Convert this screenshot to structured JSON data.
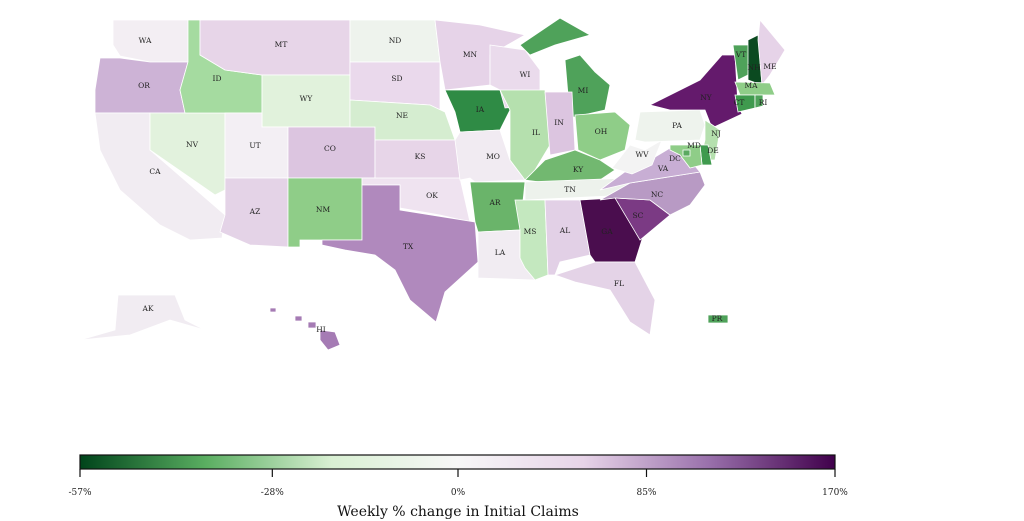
{
  "legend": {
    "title": "Weekly % change in Initial Claims",
    "ticks": [
      "-57%",
      "-28%",
      "0%",
      "85%",
      "170%"
    ],
    "tick_values": [
      -57,
      -28,
      0,
      85,
      170
    ],
    "colors": [
      "#00441b",
      "#5aae61",
      "#d9f0d3",
      "#f7f7f7",
      "#e7d4e8",
      "#9970ab",
      "#40004b"
    ]
  },
  "states": [
    {
      "code": "WA",
      "label": "WA",
      "value": 3,
      "color": "#f3eef3"
    },
    {
      "code": "OR",
      "label": "OR",
      "value": 60,
      "color": "#cdb3d6"
    },
    {
      "code": "CA",
      "label": "CA",
      "value": 5,
      "color": "#f1ecf2"
    },
    {
      "code": "NV",
      "label": "NV",
      "value": -8,
      "color": "#e2f2dd"
    },
    {
      "code": "ID",
      "label": "ID",
      "value": -22,
      "color": "#a5dba0"
    },
    {
      "code": "MT",
      "label": "MT",
      "value": 25,
      "color": "#e7d5e8"
    },
    {
      "code": "WY",
      "label": "WY",
      "value": -8,
      "color": "#e1f2dc"
    },
    {
      "code": "UT",
      "label": "UT",
      "value": 3,
      "color": "#f3eff4"
    },
    {
      "code": "CO",
      "label": "CO",
      "value": 45,
      "color": "#dcc5e0"
    },
    {
      "code": "AZ",
      "label": "AZ",
      "value": 30,
      "color": "#e4d3e7"
    },
    {
      "code": "NM",
      "label": "NM",
      "value": -25,
      "color": "#8fcd88"
    },
    {
      "code": "ND",
      "label": "ND",
      "value": -3,
      "color": "#eef3ed"
    },
    {
      "code": "SD",
      "label": "SD",
      "value": 20,
      "color": "#ead9ec"
    },
    {
      "code": "NE",
      "label": "NE",
      "value": -12,
      "color": "#d5edd0"
    },
    {
      "code": "KS",
      "label": "KS",
      "value": 25,
      "color": "#e7d5e8"
    },
    {
      "code": "OK",
      "label": "OK",
      "value": 12,
      "color": "#efe3f0"
    },
    {
      "code": "TX",
      "label": "TX",
      "value": 95,
      "color": "#b089bd"
    },
    {
      "code": "MN",
      "label": "MN",
      "value": 28,
      "color": "#e6d3e8"
    },
    {
      "code": "IA",
      "label": "IA",
      "value": -40,
      "color": "#2f8b45"
    },
    {
      "code": "MO",
      "label": "MO",
      "value": 5,
      "color": "#f1ebf2"
    },
    {
      "code": "AR",
      "label": "AR",
      "value": -32,
      "color": "#6ab46a"
    },
    {
      "code": "LA",
      "label": "LA",
      "value": 5,
      "color": "#f1ecf2"
    },
    {
      "code": "WI",
      "label": "WI",
      "value": 20,
      "color": "#eadbec"
    },
    {
      "code": "IL",
      "label": "IL",
      "value": -18,
      "color": "#b5e0ae"
    },
    {
      "code": "MI",
      "label": "MI",
      "value": -35,
      "color": "#4fa25a"
    },
    {
      "code": "IN",
      "label": "IN",
      "value": 45,
      "color": "#dcc5e0"
    },
    {
      "code": "OH",
      "label": "OH",
      "value": -25,
      "color": "#8fcd88"
    },
    {
      "code": "KY",
      "label": "KY",
      "value": -30,
      "color": "#72b870"
    },
    {
      "code": "TN",
      "label": "TN",
      "value": -3,
      "color": "#edf2ec"
    },
    {
      "code": "MS",
      "label": "MS",
      "value": -15,
      "color": "#c4e8bf"
    },
    {
      "code": "AL",
      "label": "AL",
      "value": 32,
      "color": "#e2d0e6"
    },
    {
      "code": "GA",
      "label": "GA",
      "value": 170,
      "color": "#4a0d4e"
    },
    {
      "code": "FL",
      "label": "FL",
      "value": 30,
      "color": "#e4d3e7"
    },
    {
      "code": "SC",
      "label": "SC",
      "value": 125,
      "color": "#7b3a84"
    },
    {
      "code": "NC",
      "label": "NC",
      "value": 85,
      "color": "#b89ac4"
    },
    {
      "code": "VA",
      "label": "VA",
      "value": 65,
      "color": "#c8aed4"
    },
    {
      "code": "WV",
      "label": "WV",
      "value": 0,
      "color": "#f3f3f3"
    },
    {
      "code": "PA",
      "label": "PA",
      "value": -3,
      "color": "#eef3ed"
    },
    {
      "code": "NY",
      "label": "NY",
      "value": 150,
      "color": "#641a6c"
    },
    {
      "code": "VT",
      "label": "VT",
      "value": -35,
      "color": "#4fa25a"
    },
    {
      "code": "NH",
      "label": "NH",
      "value": -55,
      "color": "#0b4a20"
    },
    {
      "code": "ME",
      "label": "ME",
      "value": 28,
      "color": "#e6d3e8"
    },
    {
      "code": "MA",
      "label": "MA",
      "value": -25,
      "color": "#8fcd88"
    },
    {
      "code": "CT",
      "label": "CT",
      "value": -38,
      "color": "#3f9a4e"
    },
    {
      "code": "RI",
      "label": "RI",
      "value": -35,
      "color": "#4fa25a"
    },
    {
      "code": "NJ",
      "label": "NJ",
      "value": -18,
      "color": "#b5e0ae"
    },
    {
      "code": "DE",
      "label": "DE",
      "value": -38,
      "color": "#3f9a4e"
    },
    {
      "code": "MD",
      "label": "MD",
      "value": -25,
      "color": "#8fcd88"
    },
    {
      "code": "DC",
      "label": "DC",
      "value": -33,
      "color": "#5aa960"
    },
    {
      "code": "AK",
      "label": "AK",
      "value": 5,
      "color": "#f1ecf2"
    },
    {
      "code": "HI",
      "label": "HI",
      "value": 100,
      "color": "#a57bb4"
    },
    {
      "code": "PR",
      "label": "PR",
      "value": -35,
      "color": "#4fa25a"
    }
  ]
}
